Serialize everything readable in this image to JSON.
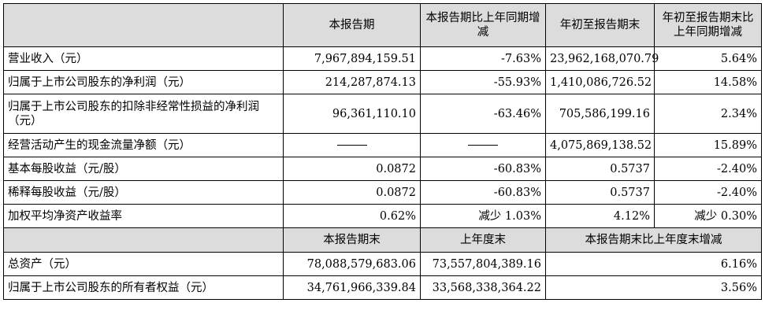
{
  "header": {
    "col1": "本报告期",
    "col2": "本报告期比上年同期增减",
    "col3": "年初至报告期末",
    "col4": "年初至报告期末比上年同期增减"
  },
  "rows": [
    {
      "label": "营业收入（元）",
      "v1": "7,967,894,159.51",
      "v2": "-7.63%",
      "v3": "23,962,168,070.79",
      "v4": "5.64%"
    },
    {
      "label": "归属于上市公司股东的净利润（元）",
      "v1": "214,287,874.13",
      "v2": "-55.93%",
      "v3": "1,410,086,726.52",
      "v4": "14.58%"
    },
    {
      "label": "归属于上市公司股东的扣除非经常性损益的净利润（元）",
      "v1": "96,361,110.10",
      "v2": "-63.46%",
      "v3": "705,586,199.16",
      "v4": "2.34%"
    },
    {
      "label": "经营活动产生的现金流量净额（元）",
      "v1": "",
      "v2": "",
      "v3": "4,075,869,138.52",
      "v4": "15.89%"
    },
    {
      "label": "基本每股收益（元/股）",
      "v1": "0.0872",
      "v2": "-60.83%",
      "v3": "0.5737",
      "v4": "-2.40%"
    },
    {
      "label": "稀释每股收益（元/股）",
      "v1": "0.0872",
      "v2": "-60.83%",
      "v3": "0.5737",
      "v4": "-2.40%"
    },
    {
      "label": "加权平均净资产收益率",
      "v1": "0.62%",
      "v2": "减少 1.03%",
      "v3": "4.12%",
      "v4": "减少 0.30%"
    }
  ],
  "header2": {
    "col1": "本报告期末",
    "col2": "上年度末",
    "col3": "本报告期末比上年度末增减"
  },
  "rows2": [
    {
      "label": "总资产（元）",
      "v1": "78,088,579,683.06",
      "v2": "73,557,804,389.16",
      "v3": "6.16%"
    },
    {
      "label": "归属于上市公司股东的所有者权益（元）",
      "v1": "34,761,966,339.84",
      "v2": "33,568,338,364.22",
      "v3": "3.56%"
    }
  ]
}
